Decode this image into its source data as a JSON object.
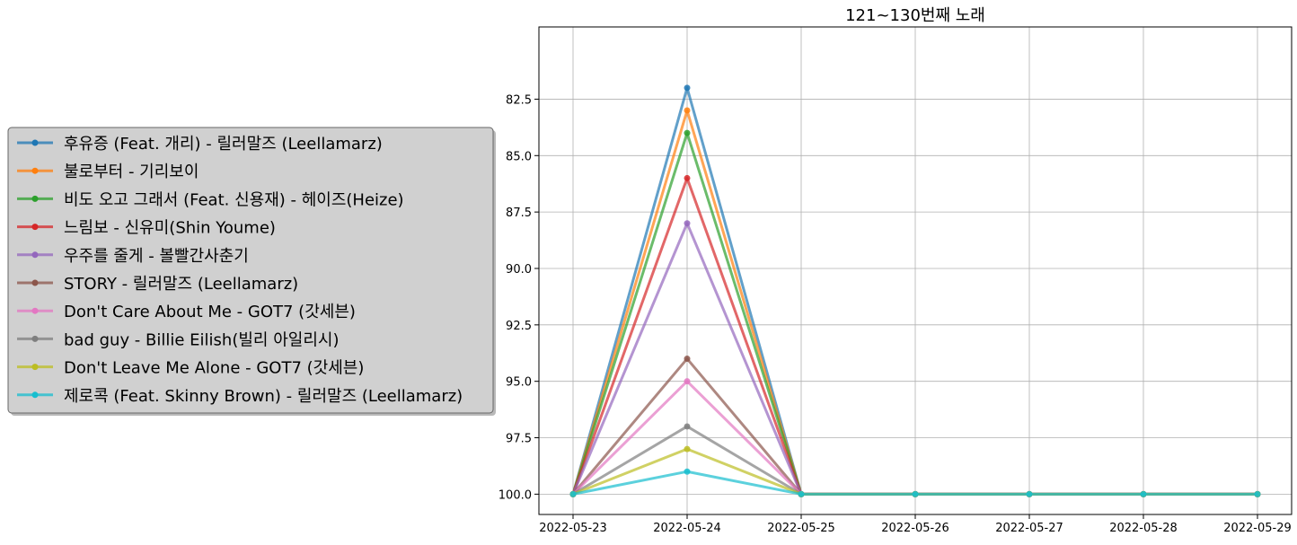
{
  "chart_data": {
    "type": "line",
    "title": "121~130번째 노래",
    "xlabel": "",
    "ylabel": "",
    "y_inverted": true,
    "ylim": [
      100.9,
      79.3
    ],
    "yticks": [
      82.5,
      85.0,
      87.5,
      90.0,
      92.5,
      95.0,
      97.5,
      100.0
    ],
    "ytick_labels": [
      "82.5",
      "85.0",
      "87.5",
      "90.0",
      "92.5",
      "95.0",
      "97.5",
      "100.0"
    ],
    "grid": true,
    "legend_position": "left",
    "x": [
      "2022-05-23",
      "2022-05-24",
      "2022-05-25",
      "2022-05-26",
      "2022-05-27",
      "2022-05-28",
      "2022-05-29"
    ],
    "series": [
      {
        "name": "후유증 (Feat. 개리) - 릴러말즈 (Leellamarz)",
        "color": "#1f77b4",
        "values": [
          100,
          82,
          100,
          100,
          100,
          100,
          100
        ]
      },
      {
        "name": "불로부터 - 기리보이",
        "color": "#ff7f0e",
        "values": [
          100,
          83,
          100,
          100,
          100,
          100,
          100
        ]
      },
      {
        "name": "비도 오고 그래서 (Feat. 신용재) - 헤이즈(Heize)",
        "color": "#2ca02c",
        "values": [
          100,
          84,
          100,
          100,
          100,
          100,
          100
        ]
      },
      {
        "name": "느림보 - 신유미(Shin Youme)",
        "color": "#d62728",
        "values": [
          100,
          86,
          100,
          100,
          100,
          100,
          100
        ]
      },
      {
        "name": "우주를 줄게 - 볼빨간사춘기",
        "color": "#9467bd",
        "values": [
          100,
          88,
          100,
          100,
          100,
          100,
          100
        ]
      },
      {
        "name": "STORY - 릴러말즈 (Leellamarz)",
        "color": "#8c564b",
        "values": [
          100,
          94,
          100,
          100,
          100,
          100,
          100
        ]
      },
      {
        "name": "Don't Care About Me - GOT7 (갓세븐)",
        "color": "#e377c2",
        "values": [
          100,
          95,
          100,
          100,
          100,
          100,
          100
        ]
      },
      {
        "name": "bad guy - Billie Eilish(빌리 아일리시)",
        "color": "#7f7f7f",
        "values": [
          100,
          97,
          100,
          100,
          100,
          100,
          100
        ]
      },
      {
        "name": "Don't Leave Me Alone - GOT7 (갓세븐)",
        "color": "#bcbd22",
        "values": [
          100,
          98,
          100,
          100,
          100,
          100,
          100
        ]
      },
      {
        "name": "제로콕 (Feat. Skinny Brown) - 릴러말즈 (Leellamarz)",
        "color": "#17becf",
        "values": [
          100,
          99,
          100,
          100,
          100,
          100,
          100
        ]
      }
    ]
  }
}
